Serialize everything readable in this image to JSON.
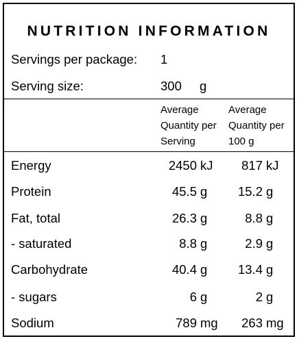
{
  "title": "NUTRITION INFORMATION",
  "servings": {
    "label": "Servings per package:",
    "value": "1"
  },
  "serving_size": {
    "label": "Serving size:",
    "value": "300",
    "unit": "g"
  },
  "columns": {
    "per_serving": [
      "Average",
      "Quantity per",
      "Serving"
    ],
    "per_100g": [
      "Average",
      "Quantity per",
      "100 g"
    ]
  },
  "rows": [
    {
      "name": "Energy",
      "serving": "2450",
      "serving_unit": "kJ",
      "per100": "817",
      "per100_unit": "kJ"
    },
    {
      "name": "Protein",
      "serving": "45.5",
      "serving_unit": "g",
      "per100": "15.2",
      "per100_unit": "g"
    },
    {
      "name": "Fat, total",
      "serving": "26.3",
      "serving_unit": "g",
      "per100": "8.8",
      "per100_unit": "g"
    },
    {
      "name": "- saturated",
      "serving": "8.8",
      "serving_unit": "g",
      "per100": "2.9",
      "per100_unit": "g"
    },
    {
      "name": "Carbohydrate",
      "serving": "40.4",
      "serving_unit": "g",
      "per100": "13.4",
      "per100_unit": "g"
    },
    {
      "name": "- sugars",
      "serving": "6",
      "serving_unit": "g",
      "per100": "2",
      "per100_unit": "g"
    },
    {
      "name": "Sodium",
      "serving": "789",
      "serving_unit": "mg",
      "per100": "263",
      "per100_unit": "mg"
    }
  ]
}
